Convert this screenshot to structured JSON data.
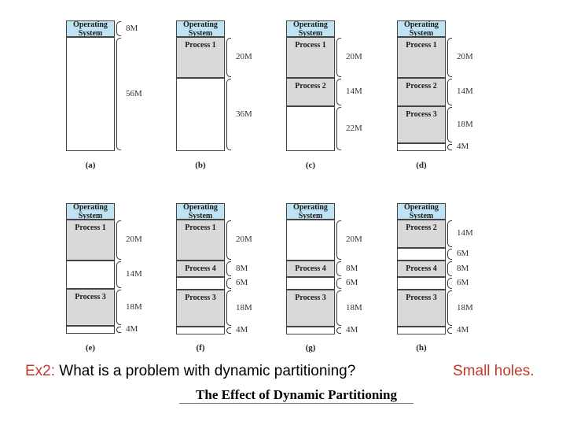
{
  "diagrams": [
    {
      "label": "(a)",
      "blocks": [
        {
          "kind": "os",
          "text": "Operating\nSystem",
          "size": "8M"
        },
        {
          "kind": "free",
          "text": "",
          "size": "56M"
        }
      ]
    },
    {
      "label": "(b)",
      "blocks": [
        {
          "kind": "os",
          "text": "Operating\nSystem",
          "size": ""
        },
        {
          "kind": "proc",
          "text": "Process 1",
          "size": "20M"
        },
        {
          "kind": "free",
          "text": "",
          "size": "36M"
        }
      ]
    },
    {
      "label": "(c)",
      "blocks": [
        {
          "kind": "os",
          "text": "Operating\nSystem",
          "size": ""
        },
        {
          "kind": "proc",
          "text": "Process 1",
          "size": "20M"
        },
        {
          "kind": "proc",
          "text": "Process 2",
          "size": "14M"
        },
        {
          "kind": "free",
          "text": "",
          "size": "22M"
        }
      ]
    },
    {
      "label": "(d)",
      "blocks": [
        {
          "kind": "os",
          "text": "Operating\nSystem",
          "size": ""
        },
        {
          "kind": "proc",
          "text": "Process 1",
          "size": "20M"
        },
        {
          "kind": "proc",
          "text": "Process 2",
          "size": "14M"
        },
        {
          "kind": "proc",
          "text": "Process 3",
          "size": "18M"
        },
        {
          "kind": "free",
          "text": "",
          "size": "4M"
        }
      ]
    },
    {
      "label": "(e)",
      "blocks": [
        {
          "kind": "os",
          "text": "Operating\nSystem",
          "size": ""
        },
        {
          "kind": "proc",
          "text": "Process 1",
          "size": "20M"
        },
        {
          "kind": "free",
          "text": "",
          "size": "14M"
        },
        {
          "kind": "proc",
          "text": "Process 3",
          "size": "18M"
        },
        {
          "kind": "free",
          "text": "",
          "size": "4M"
        }
      ]
    },
    {
      "label": "(f)",
      "blocks": [
        {
          "kind": "os",
          "text": "Operating\nSystem",
          "size": ""
        },
        {
          "kind": "proc",
          "text": "Process 1",
          "size": "20M"
        },
        {
          "kind": "proc",
          "text": "Process 4",
          "size": "8M"
        },
        {
          "kind": "free",
          "text": "",
          "size": "6M"
        },
        {
          "kind": "proc",
          "text": "Process 3",
          "size": "18M"
        },
        {
          "kind": "free",
          "text": "",
          "size": "4M"
        }
      ]
    },
    {
      "label": "(g)",
      "blocks": [
        {
          "kind": "os",
          "text": "Operating\nSystem",
          "size": ""
        },
        {
          "kind": "free",
          "text": "",
          "size": "20M"
        },
        {
          "kind": "proc",
          "text": "Process 4",
          "size": "8M"
        },
        {
          "kind": "free",
          "text": "",
          "size": "6M"
        },
        {
          "kind": "proc",
          "text": "Process 3",
          "size": "18M"
        },
        {
          "kind": "free",
          "text": "",
          "size": "4M"
        }
      ]
    },
    {
      "label": "(h)",
      "blocks": [
        {
          "kind": "os",
          "text": "Operating\nSystem",
          "size": ""
        },
        {
          "kind": "proc",
          "text": "Process 2",
          "size": "14M"
        },
        {
          "kind": "free",
          "text": "",
          "size": "6M"
        },
        {
          "kind": "proc",
          "text": "Process 4",
          "size": "8M"
        },
        {
          "kind": "free",
          "text": "",
          "size": "6M"
        },
        {
          "kind": "proc",
          "text": "Process 3",
          "size": "18M"
        },
        {
          "kind": "free",
          "text": "",
          "size": "4M"
        }
      ]
    }
  ],
  "question": {
    "prefix": "Ex2:",
    "text": " What is a problem with dynamic partitioning?"
  },
  "answer": "Small holes.",
  "caption": "The Effect of Dynamic Partitioning",
  "colors": {
    "os_fill": "#bfe3f2",
    "process_fill": "#d9d9d9",
    "free_fill": "#ffffff",
    "accent": "#c0392b"
  }
}
